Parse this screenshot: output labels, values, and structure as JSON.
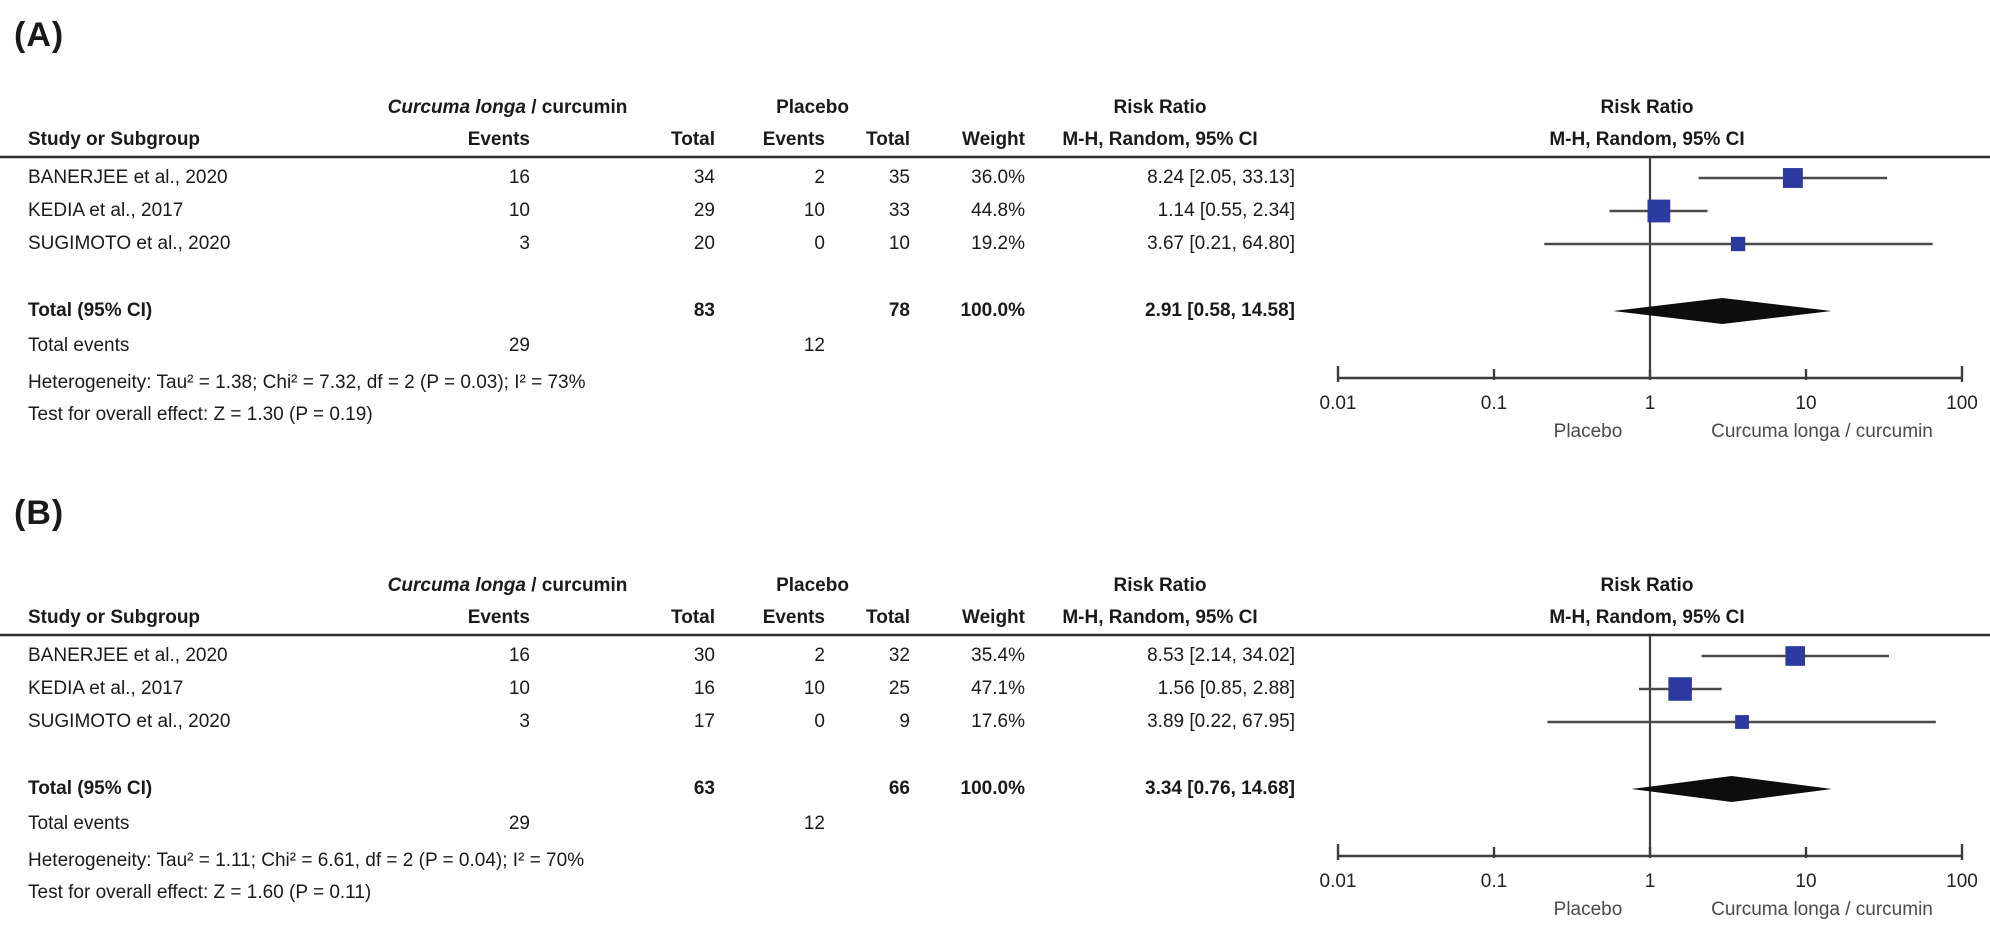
{
  "colors": {
    "marker_blue": "#2b39a0",
    "diamond_black": "#0d0d0d",
    "ci_line": "#4a4a4a",
    "axis_line": "#3d3d3d",
    "text": "#1a1a1a",
    "favour_text": "#4a4a4a"
  },
  "chart_data": [
    {
      "type": "forest",
      "panel_label": "(A)",
      "effect_measure": "Risk Ratio",
      "method": "M-H, Random, 95% CI",
      "headers": {
        "study": "Study or Subgroup",
        "treatment_group_italic": "Curcuma longa",
        "treatment_group_rest": " / curcumin",
        "control_group": "Placebo",
        "events": "Events",
        "total": "Total",
        "events2": "Events",
        "total2": "Total",
        "weight": "Weight",
        "rr_title": "Risk Ratio",
        "rr_subtitle": "M-H, Random, 95% CI",
        "plot_title": "Risk Ratio",
        "plot_subtitle": "M-H, Random, 95% CI"
      },
      "studies": [
        {
          "name": "BANERJEE et al., 2020",
          "treatment_events": 16,
          "treatment_total": 34,
          "control_events": 2,
          "control_total": 35,
          "weight_pct": 36.0,
          "weight_label": "36.0%",
          "rr": 8.24,
          "ci_low": 2.05,
          "ci_high": 33.13,
          "rr_label": "8.24 [2.05, 33.13]"
        },
        {
          "name": "KEDIA et al., 2017",
          "treatment_events": 10,
          "treatment_total": 29,
          "control_events": 10,
          "control_total": 33,
          "weight_pct": 44.8,
          "weight_label": "44.8%",
          "rr": 1.14,
          "ci_low": 0.55,
          "ci_high": 2.34,
          "rr_label": "1.14 [0.55, 2.34]"
        },
        {
          "name": "SUGIMOTO et al., 2020",
          "treatment_events": 3,
          "treatment_total": 20,
          "control_events": 0,
          "control_total": 10,
          "weight_pct": 19.2,
          "weight_label": "19.2%",
          "rr": 3.67,
          "ci_low": 0.21,
          "ci_high": 64.8,
          "rr_label": "3.67 [0.21, 64.80]"
        }
      ],
      "total": {
        "label": "Total (95% CI)",
        "treatment_total": 83,
        "control_total": 78,
        "weight_pct": 100.0,
        "weight_label": "100.0%",
        "rr": 2.91,
        "ci_low": 0.58,
        "ci_high": 14.58,
        "rr_label": "2.91 [0.58, 14.58]"
      },
      "total_events": {
        "label": "Total events",
        "treatment": 29,
        "control": 12
      },
      "heterogeneity": "Heterogeneity: Tau² = 1.38; Chi² = 7.32, df = 2 (P = 0.03); I² = 73%",
      "overall_effect": "Test for overall effect: Z = 1.30 (P = 0.19)",
      "axis": {
        "scale": "log10",
        "min": 0.01,
        "max": 100,
        "ticks": [
          0.01,
          0.1,
          1,
          10,
          100
        ],
        "tick_labels": [
          "0.01",
          "0.1",
          "1",
          "10",
          "100"
        ]
      },
      "favours_left": "Placebo",
      "favours_right": "Curcuma longa / curcumin"
    },
    {
      "type": "forest",
      "panel_label": "(B)",
      "effect_measure": "Risk Ratio",
      "method": "M-H, Random, 95% CI",
      "headers": {
        "study": "Study or Subgroup",
        "treatment_group_italic": "Curcuma longa",
        "treatment_group_rest": " / curcumin",
        "control_group": "Placebo",
        "events": "Events",
        "total": "Total",
        "events2": "Events",
        "total2": "Total",
        "weight": "Weight",
        "rr_title": "Risk Ratio",
        "rr_subtitle": "M-H, Random, 95% CI",
        "plot_title": "Risk Ratio",
        "plot_subtitle": "M-H, Random, 95% CI"
      },
      "studies": [
        {
          "name": "BANERJEE et al., 2020",
          "treatment_events": 16,
          "treatment_total": 30,
          "control_events": 2,
          "control_total": 32,
          "weight_pct": 35.4,
          "weight_label": "35.4%",
          "rr": 8.53,
          "ci_low": 2.14,
          "ci_high": 34.02,
          "rr_label": "8.53 [2.14, 34.02]"
        },
        {
          "name": "KEDIA et al., 2017",
          "treatment_events": 10,
          "treatment_total": 16,
          "control_events": 10,
          "control_total": 25,
          "weight_pct": 47.1,
          "weight_label": "47.1%",
          "rr": 1.56,
          "ci_low": 0.85,
          "ci_high": 2.88,
          "rr_label": "1.56 [0.85, 2.88]"
        },
        {
          "name": "SUGIMOTO et al., 2020",
          "treatment_events": 3,
          "treatment_total": 17,
          "control_events": 0,
          "control_total": 9,
          "weight_pct": 17.6,
          "weight_label": "17.6%",
          "rr": 3.89,
          "ci_low": 0.22,
          "ci_high": 67.95,
          "rr_label": "3.89 [0.22, 67.95]"
        }
      ],
      "total": {
        "label": "Total (95% CI)",
        "treatment_total": 63,
        "control_total": 66,
        "weight_pct": 100.0,
        "weight_label": "100.0%",
        "rr": 3.34,
        "ci_low": 0.76,
        "ci_high": 14.68,
        "rr_label": "3.34 [0.76, 14.68]"
      },
      "total_events": {
        "label": "Total events",
        "treatment": 29,
        "control": 12
      },
      "heterogeneity": "Heterogeneity: Tau² = 1.11; Chi² = 6.61, df = 2 (P = 0.04); I² = 70%",
      "overall_effect": "Test for overall effect: Z = 1.60 (P = 0.11)",
      "axis": {
        "scale": "log10",
        "min": 0.01,
        "max": 100,
        "ticks": [
          0.01,
          0.1,
          1,
          10,
          100
        ],
        "tick_labels": [
          "0.01",
          "0.1",
          "1",
          "10",
          "100"
        ]
      },
      "favours_left": "Placebo",
      "favours_right": "Curcuma longa / curcumin"
    }
  ]
}
